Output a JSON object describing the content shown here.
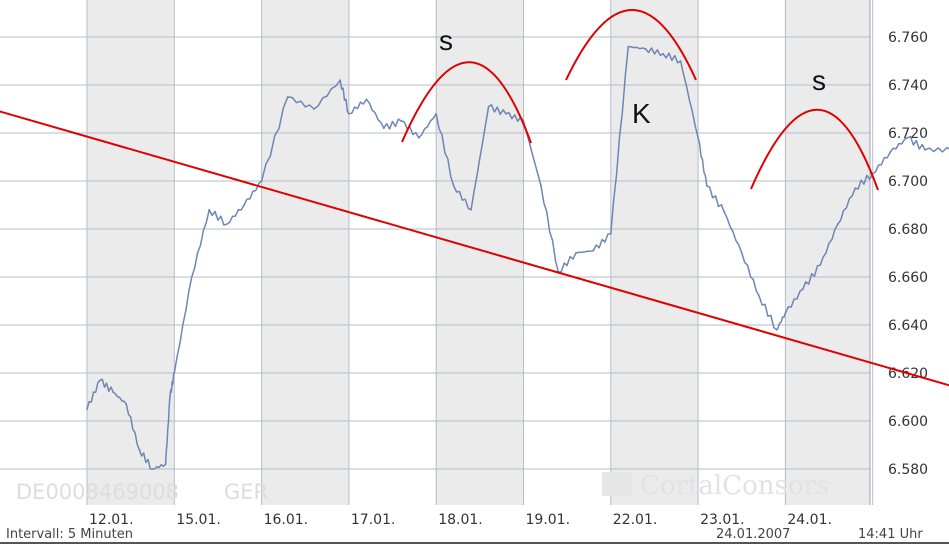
{
  "chart_data": {
    "type": "line",
    "ylim": [
      6570,
      6775
    ],
    "y_ticks": [
      {
        "value": 6580,
        "label": "6.580"
      },
      {
        "value": 6600,
        "label": "6.600"
      },
      {
        "value": 6620,
        "label": "6.620"
      },
      {
        "value": 6640,
        "label": "6.640"
      },
      {
        "value": 6660,
        "label": "6.660"
      },
      {
        "value": 6680,
        "label": "6.680"
      },
      {
        "value": 6700,
        "label": "6.700"
      },
      {
        "value": 6720,
        "label": "6.720"
      },
      {
        "value": 6740,
        "label": "6.740"
      },
      {
        "value": 6760,
        "label": "6.760"
      }
    ],
    "x_labels": [
      "12.01.",
      "15.01.",
      "16.01.",
      "17.01.",
      "18.01.",
      "19.01.",
      "22.01.",
      "23.01.",
      "24.01."
    ],
    "grid": true,
    "series": [
      {
        "x": [
          0,
          0.15,
          0.3,
          0.45,
          0.6,
          0.75,
          0.9,
          0.95,
          1,
          1.2,
          1.4,
          1.6,
          1.8,
          2,
          2.3,
          2.6,
          2.9,
          3,
          3.2,
          3.4,
          3.6,
          3.8,
          4,
          4.2,
          4.4,
          4.6,
          4.8,
          5,
          5.2,
          5.4,
          5.6,
          5.8,
          6,
          6.2,
          6.4,
          6.6,
          6.8,
          7,
          7.1,
          7.3,
          7.5,
          7.7,
          7.9,
          8,
          8.2,
          8.4,
          8.6,
          8.8,
          9,
          9.2,
          9.4,
          9.6,
          9.9
        ],
        "y": [
          6605,
          6617,
          6612,
          6607,
          6588,
          6580,
          6582,
          6610,
          6620,
          6660,
          6688,
          6682,
          6690,
          6700,
          6735,
          6730,
          6742,
          6728,
          6734,
          6722,
          6725,
          6718,
          6728,
          6698,
          6688,
          6731,
          6728,
          6725,
          6698,
          6662,
          6670,
          6671,
          6678,
          6756,
          6755,
          6753,
          6750,
          6718,
          6698,
          6687,
          6670,
          6652,
          6638,
          6645,
          6655,
          6665,
          6682,
          6697,
          6703,
          6712,
          6718,
          6713,
          6713
        ]
      }
    ],
    "trendline": {
      "from": [
        -1,
        6729
      ],
      "to": [
        10.15,
        6612
      ]
    },
    "annotations": [
      "s",
      "K",
      "s"
    ],
    "watermarks": {
      "isin": "DE0008469008",
      "exchange": "GER",
      "brand": "CortalConsors"
    },
    "footer": {
      "interval": "Intervall: 5 Minuten",
      "date": "24.01.2007",
      "time": "14:41 Uhr"
    },
    "colors": {
      "price": "#6e86b4",
      "trend": "#e00000",
      "arc": "#e00000",
      "shade": "#ebebeb",
      "grid": "#b6bcc8"
    }
  }
}
